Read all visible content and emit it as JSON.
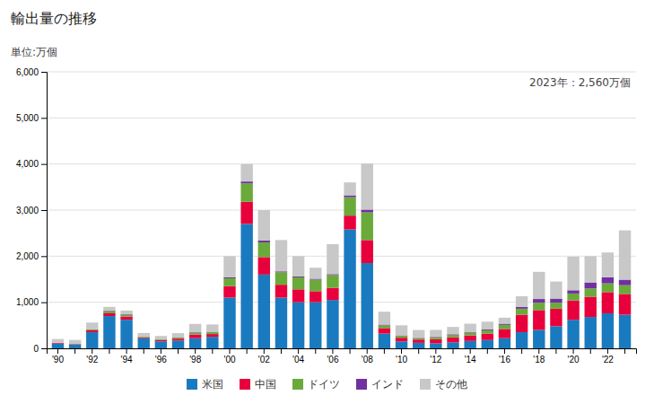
{
  "chart_data": {
    "type": "bar",
    "stacked": true,
    "title": "輸出量の推移",
    "subtitle": "単位:万個",
    "annotations": [
      "2023年：2,560万個"
    ],
    "categories": [
      "'90",
      null,
      "'92",
      null,
      "'94",
      null,
      "'96",
      null,
      "'98",
      null,
      "'00",
      null,
      "'02",
      null,
      "'04",
      null,
      "'06",
      null,
      "'08",
      null,
      "'10",
      null,
      "'12",
      null,
      "'14",
      null,
      "'16",
      null,
      "'18",
      null,
      "'20",
      null,
      "'22",
      null
    ],
    "series": [
      {
        "name": "米国",
        "color": "#1a7abf",
        "values": [
          100,
          80,
          350,
          700,
          620,
          220,
          150,
          170,
          220,
          250,
          1100,
          2700,
          1600,
          1100,
          1000,
          1000,
          1050,
          2580,
          1850,
          320,
          150,
          120,
          110,
          130,
          160,
          180,
          220,
          350,
          400,
          480,
          620,
          680,
          760,
          730
        ]
      },
      {
        "name": "中国",
        "color": "#e8003d",
        "values": [
          15,
          10,
          40,
          60,
          70,
          20,
          25,
          40,
          80,
          60,
          250,
          480,
          380,
          280,
          280,
          240,
          260,
          300,
          500,
          120,
          80,
          70,
          90,
          110,
          120,
          140,
          200,
          380,
          430,
          380,
          420,
          440,
          460,
          450
        ]
      },
      {
        "name": "ドイツ",
        "color": "#6aaa3a",
        "values": [
          5,
          5,
          20,
          50,
          40,
          15,
          15,
          25,
          40,
          40,
          170,
          400,
          320,
          270,
          260,
          250,
          280,
          400,
          600,
          60,
          40,
          30,
          40,
          50,
          60,
          70,
          90,
          130,
          160,
          130,
          150,
          180,
          190,
          190
        ]
      },
      {
        "name": "インド",
        "color": "#7030a0",
        "values": [
          2,
          2,
          5,
          10,
          10,
          3,
          3,
          5,
          10,
          8,
          20,
          40,
          40,
          20,
          20,
          20,
          20,
          40,
          60,
          15,
          10,
          8,
          10,
          15,
          15,
          18,
          25,
          40,
          80,
          90,
          70,
          130,
          130,
          120
        ]
      },
      {
        "name": "その他",
        "color": "#c8c8c8",
        "values": [
          80,
          85,
          145,
          80,
          80,
          75,
          75,
          90,
          180,
          160,
          460,
          380,
          660,
          680,
          440,
          240,
          650,
          280,
          1000,
          280,
          220,
          170,
          150,
          160,
          180,
          170,
          130,
          230,
          590,
          370,
          730,
          570,
          540,
          1070
        ]
      }
    ],
    "ylim": [
      0,
      6000
    ],
    "yticks": [
      0,
      {
        "value": 1000,
        "label": "1,000"
      },
      {
        "value": 2000,
        "label": "2,000"
      },
      {
        "value": 3000,
        "label": "3,000"
      },
      {
        "value": 4000,
        "label": "4,000"
      },
      {
        "value": 5000,
        "label": "5,000"
      },
      {
        "value": 6000,
        "label": "6,000"
      }
    ],
    "grid": true,
    "legend": "bottom"
  }
}
